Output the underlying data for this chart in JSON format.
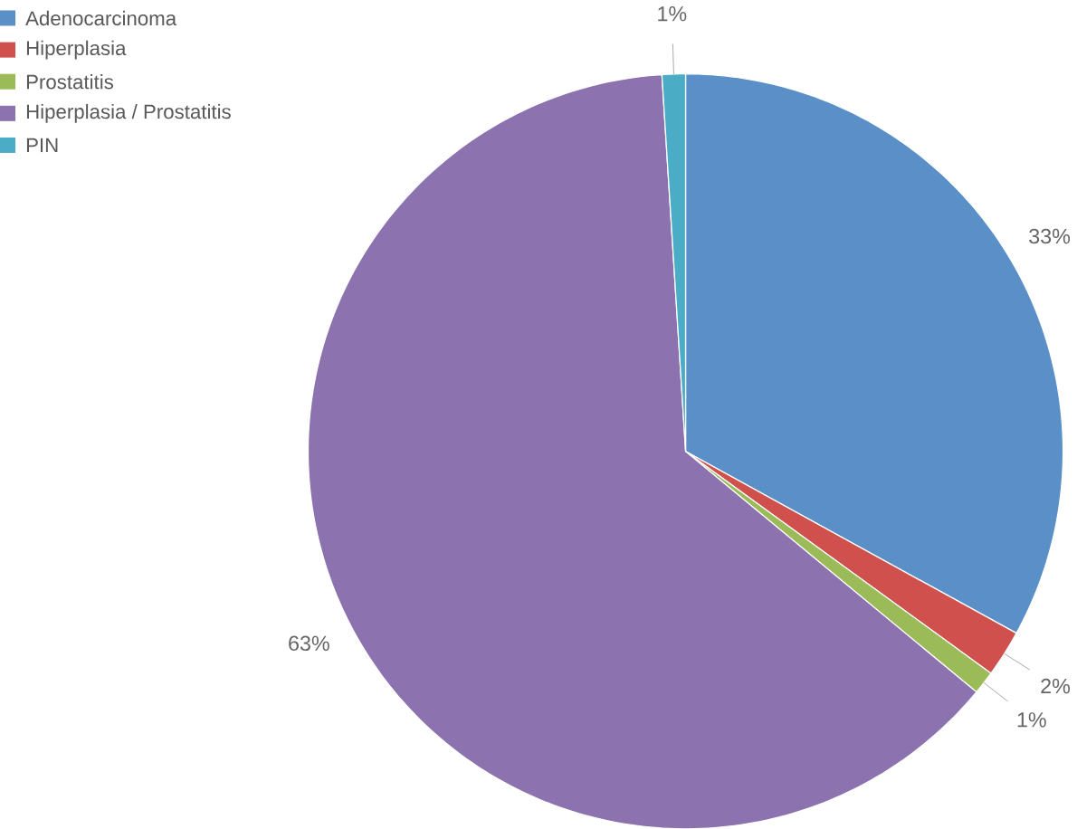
{
  "chart_data": {
    "type": "pie",
    "categories": [
      "Adenocarcinoma",
      "Hiperplasia",
      "Prostatitis",
      "Hiperplasia / Prostatitis",
      "PIN"
    ],
    "values": [
      33,
      2,
      1,
      63,
      1
    ],
    "value_labels": [
      "33%",
      "2%",
      "1%",
      "63%",
      "1%"
    ],
    "colors": [
      "#5b8fc8",
      "#d0504d",
      "#9bbb59",
      "#8c72ae",
      "#4bacc6"
    ],
    "legend": "top left"
  }
}
